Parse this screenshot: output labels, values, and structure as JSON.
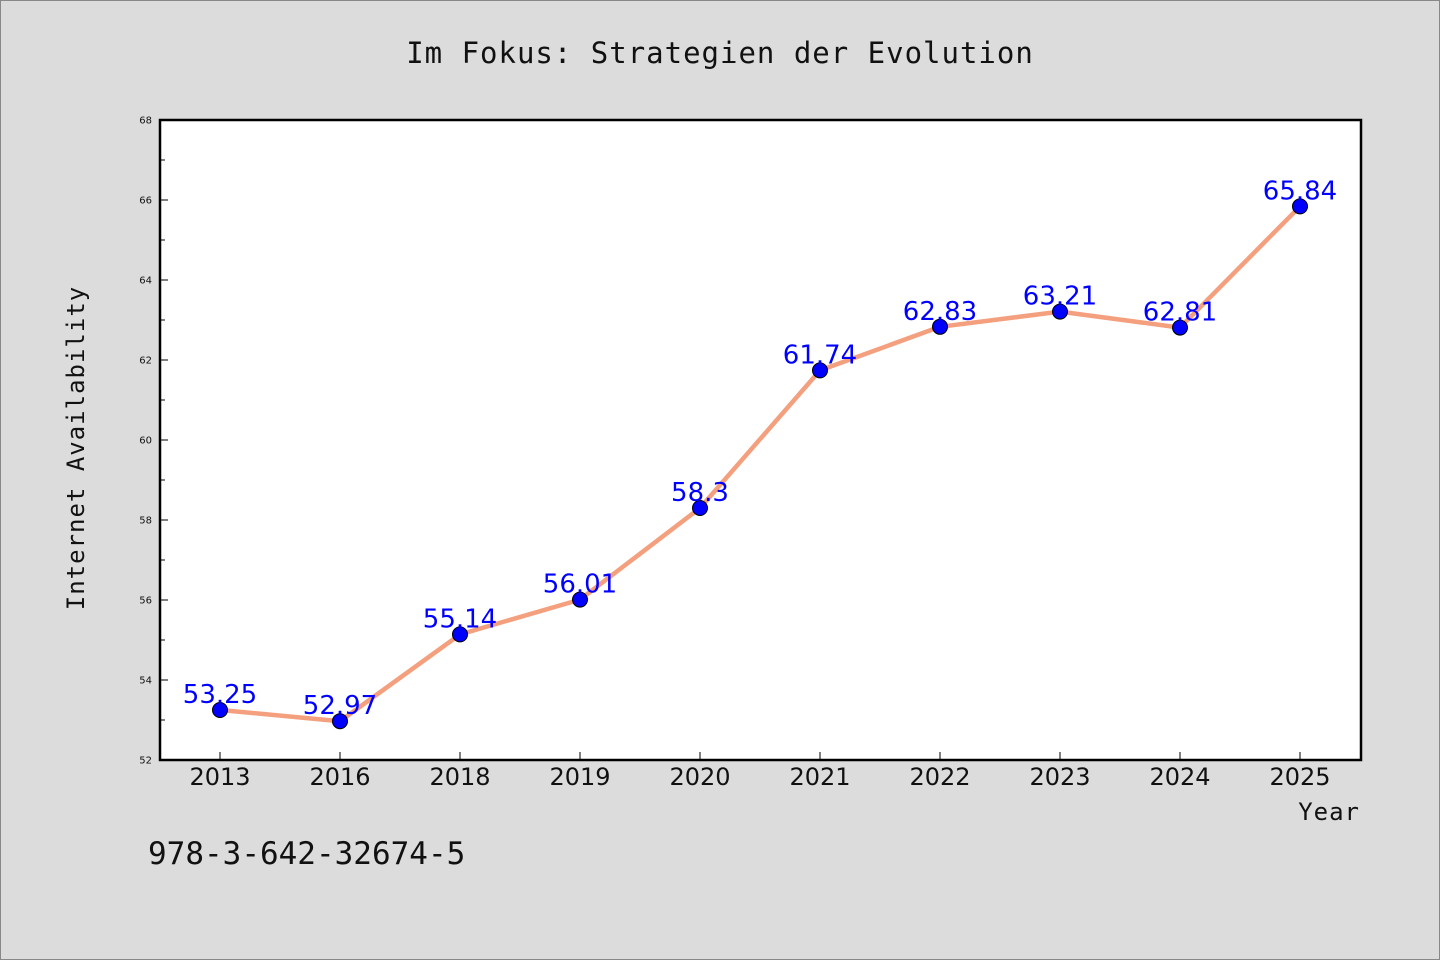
{
  "chart_data": {
    "type": "line",
    "title": "Im Fokus: Strategien der Evolution",
    "xlabel": "Year",
    "ylabel": "Internet Availability",
    "categories": [
      "2013",
      "2016",
      "2018",
      "2019",
      "2020",
      "2021",
      "2022",
      "2023",
      "2024",
      "2025"
    ],
    "series": [
      {
        "values": [
          53.25,
          52.97,
          55.14,
          56.01,
          58.3,
          61.74,
          62.83,
          63.21,
          62.81,
          65.84
        ],
        "labels": [
          "53.25",
          "52.97",
          "55.14",
          "56.01",
          "58.3",
          "61.74",
          "62.83",
          "63.21",
          "62.81",
          "65.84"
        ]
      }
    ],
    "ylim": [
      52,
      68
    ],
    "yticks": [
      "52",
      "54",
      "56",
      "58",
      "60",
      "62",
      "64",
      "66",
      "68"
    ],
    "grid": false,
    "line_color": "#f4a07e",
    "marker_color": "#0000ff",
    "label_color": "#0000ff"
  },
  "footer_text": "978-3-642-32674-5"
}
